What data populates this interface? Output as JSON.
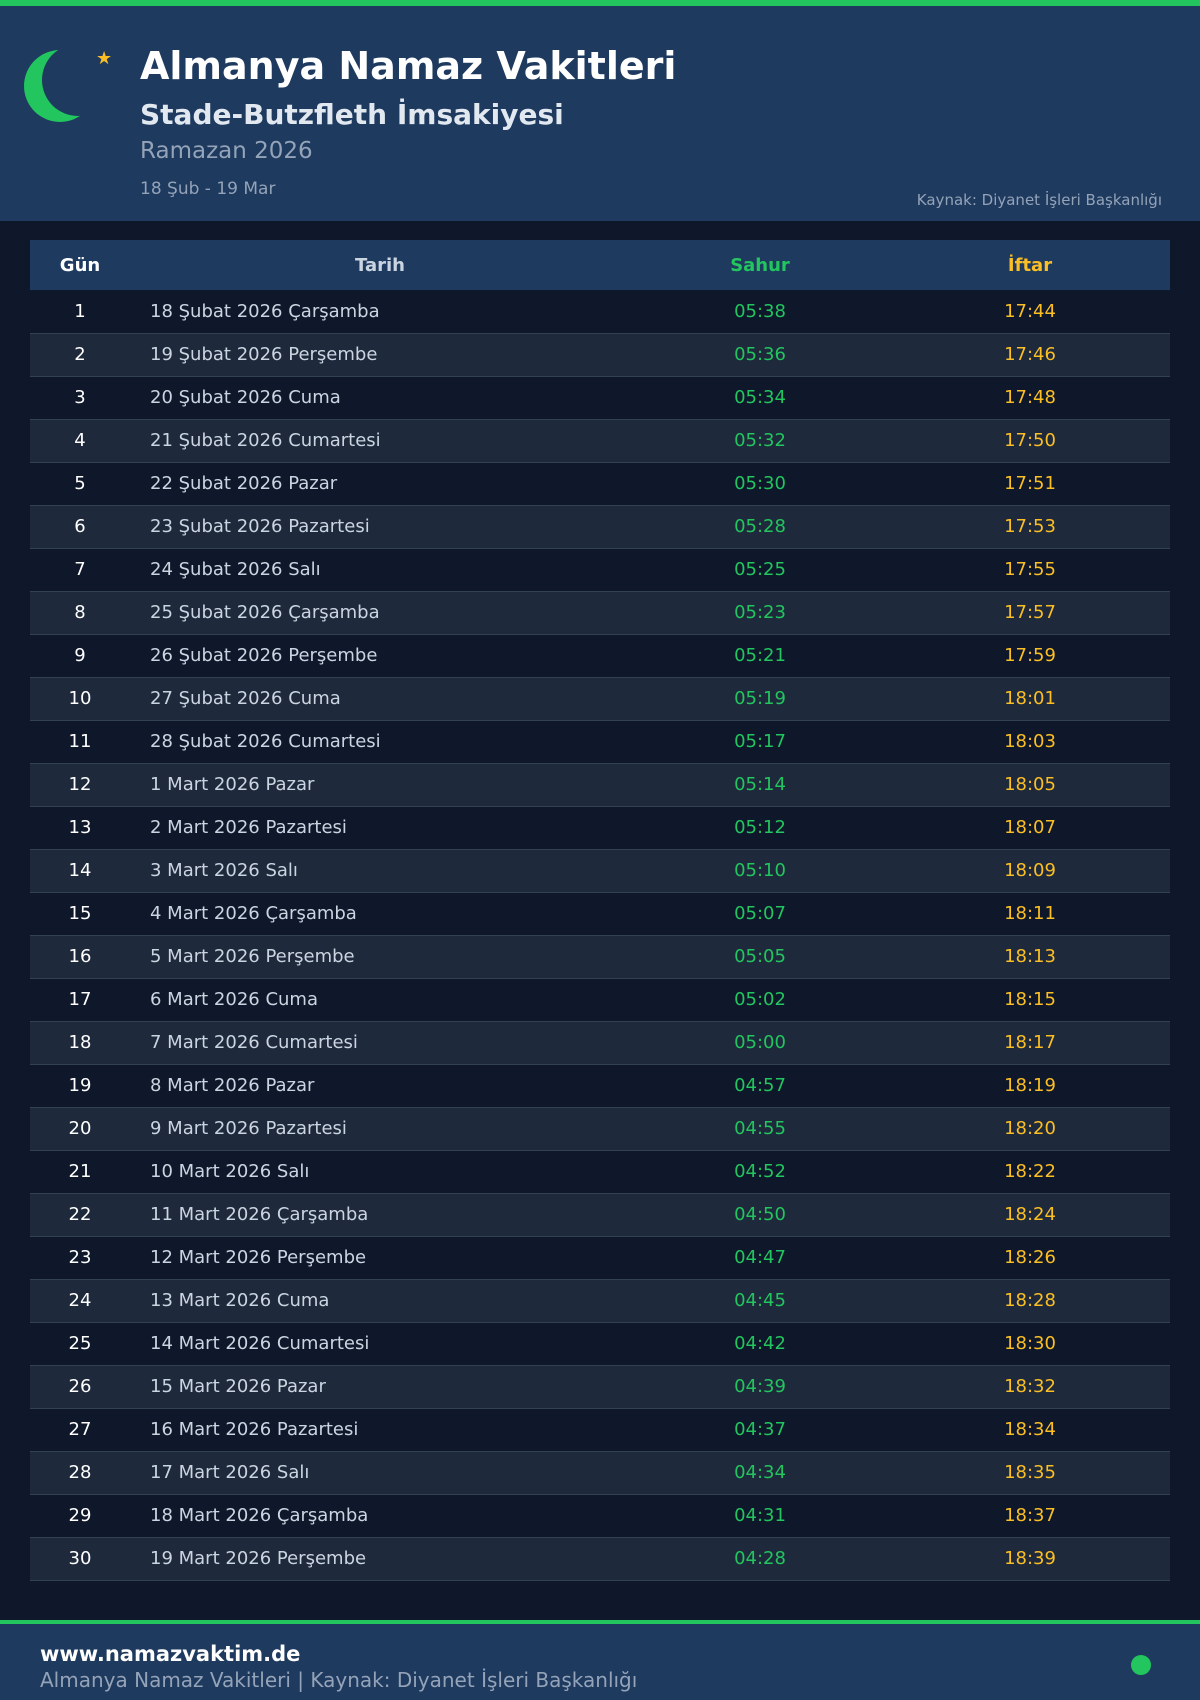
{
  "colors": {
    "accent": "#22c55e",
    "iftar": "#fbbf24",
    "header_bg": "#1e3a5f",
    "page_bg": "#0f172a"
  },
  "header": {
    "icon": "crescent-star-icon",
    "title": "Almanya Namaz Vakitleri",
    "subtitle": "Stade-Butzfleth İmsakiyesi",
    "period": "Ramazan 2026",
    "range": "18 Şub - 19 Mar",
    "source": "Kaynak: Diyanet İşleri Başkanlığı"
  },
  "table": {
    "columns": [
      "Gün",
      "Tarih",
      "Sahur",
      "İftar"
    ],
    "rows": [
      [
        "1",
        "18 Şubat 2026 Çarşamba",
        "05:38",
        "17:44"
      ],
      [
        "2",
        "19 Şubat 2026 Perşembe",
        "05:36",
        "17:46"
      ],
      [
        "3",
        "20 Şubat 2026 Cuma",
        "05:34",
        "17:48"
      ],
      [
        "4",
        "21 Şubat 2026 Cumartesi",
        "05:32",
        "17:50"
      ],
      [
        "5",
        "22 Şubat 2026 Pazar",
        "05:30",
        "17:51"
      ],
      [
        "6",
        "23 Şubat 2026 Pazartesi",
        "05:28",
        "17:53"
      ],
      [
        "7",
        "24 Şubat 2026 Salı",
        "05:25",
        "17:55"
      ],
      [
        "8",
        "25 Şubat 2026 Çarşamba",
        "05:23",
        "17:57"
      ],
      [
        "9",
        "26 Şubat 2026 Perşembe",
        "05:21",
        "17:59"
      ],
      [
        "10",
        "27 Şubat 2026 Cuma",
        "05:19",
        "18:01"
      ],
      [
        "11",
        "28 Şubat 2026 Cumartesi",
        "05:17",
        "18:03"
      ],
      [
        "12",
        "1 Mart 2026 Pazar",
        "05:14",
        "18:05"
      ],
      [
        "13",
        "2 Mart 2026 Pazartesi",
        "05:12",
        "18:07"
      ],
      [
        "14",
        "3 Mart 2026 Salı",
        "05:10",
        "18:09"
      ],
      [
        "15",
        "4 Mart 2026 Çarşamba",
        "05:07",
        "18:11"
      ],
      [
        "16",
        "5 Mart 2026 Perşembe",
        "05:05",
        "18:13"
      ],
      [
        "17",
        "6 Mart 2026 Cuma",
        "05:02",
        "18:15"
      ],
      [
        "18",
        "7 Mart 2026 Cumartesi",
        "05:00",
        "18:17"
      ],
      [
        "19",
        "8 Mart 2026 Pazar",
        "04:57",
        "18:19"
      ],
      [
        "20",
        "9 Mart 2026 Pazartesi",
        "04:55",
        "18:20"
      ],
      [
        "21",
        "10 Mart 2026 Salı",
        "04:52",
        "18:22"
      ],
      [
        "22",
        "11 Mart 2026 Çarşamba",
        "04:50",
        "18:24"
      ],
      [
        "23",
        "12 Mart 2026 Perşembe",
        "04:47",
        "18:26"
      ],
      [
        "24",
        "13 Mart 2026 Cuma",
        "04:45",
        "18:28"
      ],
      [
        "25",
        "14 Mart 2026 Cumartesi",
        "04:42",
        "18:30"
      ],
      [
        "26",
        "15 Mart 2026 Pazar",
        "04:39",
        "18:32"
      ],
      [
        "27",
        "16 Mart 2026 Pazartesi",
        "04:37",
        "18:34"
      ],
      [
        "28",
        "17 Mart 2026 Salı",
        "04:34",
        "18:35"
      ],
      [
        "29",
        "18 Mart 2026 Çarşamba",
        "04:31",
        "18:37"
      ],
      [
        "30",
        "19 Mart 2026 Perşembe",
        "04:28",
        "18:39"
      ]
    ]
  },
  "footer": {
    "site": "www.namazvaktim.de",
    "note": "Almanya Namaz Vakitleri | Kaynak: Diyanet İşleri Başkanlığı",
    "status_icon": "status-dot-icon"
  }
}
